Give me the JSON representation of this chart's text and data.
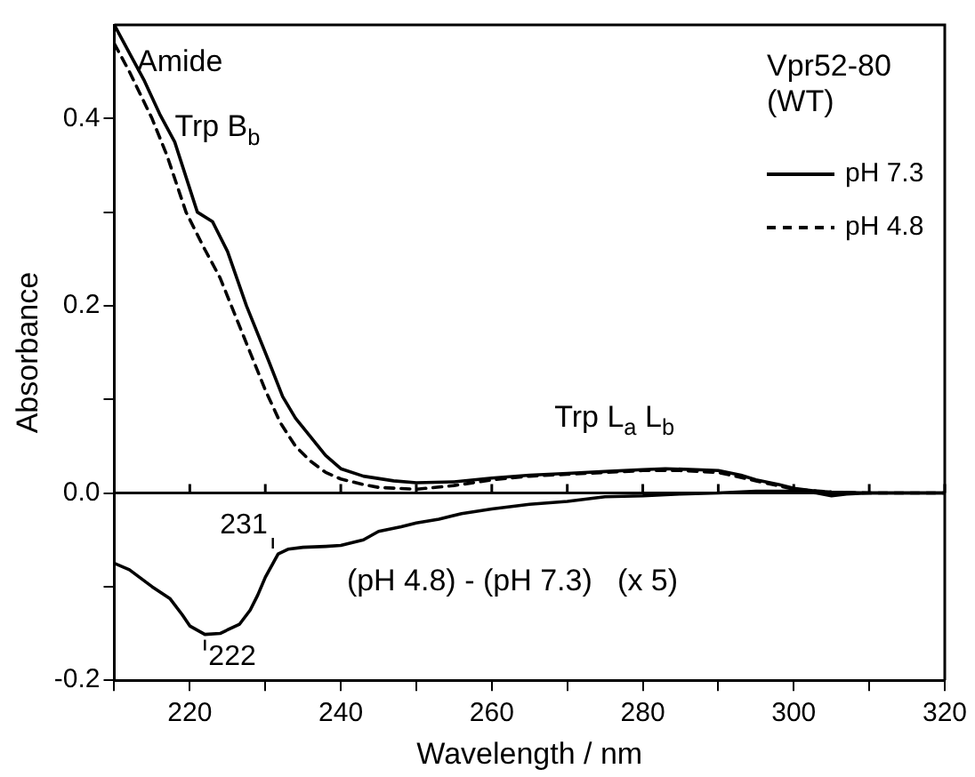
{
  "chart_data": {
    "type": "line",
    "title": "Vpr52-80\n(WT)",
    "xlabel": "Wavelength / nm",
    "ylabel": "Absorbance",
    "xlim": [
      210,
      320
    ],
    "ylim": [
      -0.2,
      0.5
    ],
    "xticks": [
      {
        "value": 210,
        "label": null
      },
      220,
      {
        "value": 230,
        "label": null
      },
      240,
      {
        "value": 250,
        "label": null
      },
      260,
      {
        "value": 270,
        "label": null
      },
      280,
      {
        "value": 290,
        "label": null
      },
      300,
      {
        "value": 310,
        "label": null
      },
      320
    ],
    "yticks": [
      {
        "value": -0.2,
        "label": "-0.2"
      },
      {
        "value": -0.1,
        "label": null
      },
      {
        "value": 0,
        "label": "0.0"
      },
      {
        "value": 0.1,
        "label": null
      },
      {
        "value": 0.2,
        "label": "0.2"
      },
      {
        "value": 0.3,
        "label": null
      },
      {
        "value": 0.4,
        "label": "0.4"
      }
    ],
    "grid": false,
    "legend": "top right",
    "marker": "none",
    "series": [
      {
        "name": "pH 7.3",
        "color": "#000000",
        "line_style": "solid",
        "x": [
          210,
          212,
          214,
          216,
          218,
          221,
          223,
          225,
          227.5,
          230.4,
          232.3,
          234,
          236,
          238,
          240,
          243,
          247,
          250,
          255,
          260,
          265,
          270,
          275,
          280,
          283,
          287,
          290,
          293,
          295,
          298,
          300,
          303,
          305,
          310,
          315,
          320
        ],
        "values": [
          0.5,
          0.47,
          0.44,
          0.405,
          0.375,
          0.3,
          0.29,
          0.258,
          0.2,
          0.142,
          0.103,
          0.08,
          0.06,
          0.04,
          0.026,
          0.018,
          0.013,
          0.011,
          0.012,
          0.016,
          0.019,
          0.021,
          0.023,
          0.025,
          0.026,
          0.025,
          0.024,
          0.019,
          0.014,
          0.009,
          0.005,
          0.002,
          0.001,
          0,
          0,
          0
        ]
      },
      {
        "name": "pH 4.8",
        "color": "#000000",
        "line_style": "dashed",
        "x": [
          210,
          212,
          215,
          217,
          219.5,
          222,
          224,
          226,
          228,
          230,
          232,
          234,
          236,
          238,
          240,
          243,
          245,
          250,
          255,
          260,
          265,
          270,
          275,
          280,
          285,
          290,
          295,
          300,
          305,
          310,
          320
        ],
        "values": [
          0.48,
          0.45,
          0.4,
          0.36,
          0.3,
          0.26,
          0.23,
          0.19,
          0.15,
          0.11,
          0.075,
          0.05,
          0.034,
          0.022,
          0.015,
          0.009,
          0.006,
          0.004,
          0.008,
          0.014,
          0.018,
          0.02,
          0.022,
          0.024,
          0.024,
          0.022,
          0.013,
          0.004,
          0.001,
          0,
          0
        ]
      },
      {
        "color": "#000000",
        "line_style": "solid",
        "x": [
          210,
          212,
          215,
          217.4,
          219,
          220,
          222,
          224,
          226.6,
          228,
          229,
          230,
          231.7,
          233,
          235,
          238,
          240,
          243,
          245,
          248,
          250,
          253,
          256,
          260,
          265,
          270,
          275,
          280,
          285,
          290,
          295,
          300,
          303,
          305,
          307,
          310,
          315,
          320
        ],
        "values": [
          -0.075,
          -0.082,
          -0.1,
          -0.113,
          -0.13,
          -0.142,
          -0.151,
          -0.15,
          -0.14,
          -0.125,
          -0.109,
          -0.09,
          -0.065,
          -0.06,
          -0.058,
          -0.057,
          -0.056,
          -0.05,
          -0.041,
          -0.036,
          -0.032,
          -0.028,
          -0.022,
          -0.017,
          -0.012,
          -0.009,
          -0.004,
          -0.003,
          -0.001,
          0,
          0.002,
          0.002,
          0,
          -0.003,
          -0.001,
          0,
          0,
          0
        ]
      }
    ],
    "ref_lines": [
      {
        "axis": "y",
        "value": 0
      }
    ],
    "annotations": [
      {
        "text": "Amide",
        "x": 213,
        "y": 0.46
      },
      {
        "text": "Trp B$_{b}$",
        "x": 218,
        "y": 0.39
      },
      "Trp L$_{a}$ L$_{b}$",
      {
        "text": "231",
        "x": 231,
        "y": -0.065
      },
      {
        "text": "222",
        "x": 222,
        "y": -0.151
      },
      "(pH 4.8) - (pH 7.3)   (x 5)"
    ]
  }
}
